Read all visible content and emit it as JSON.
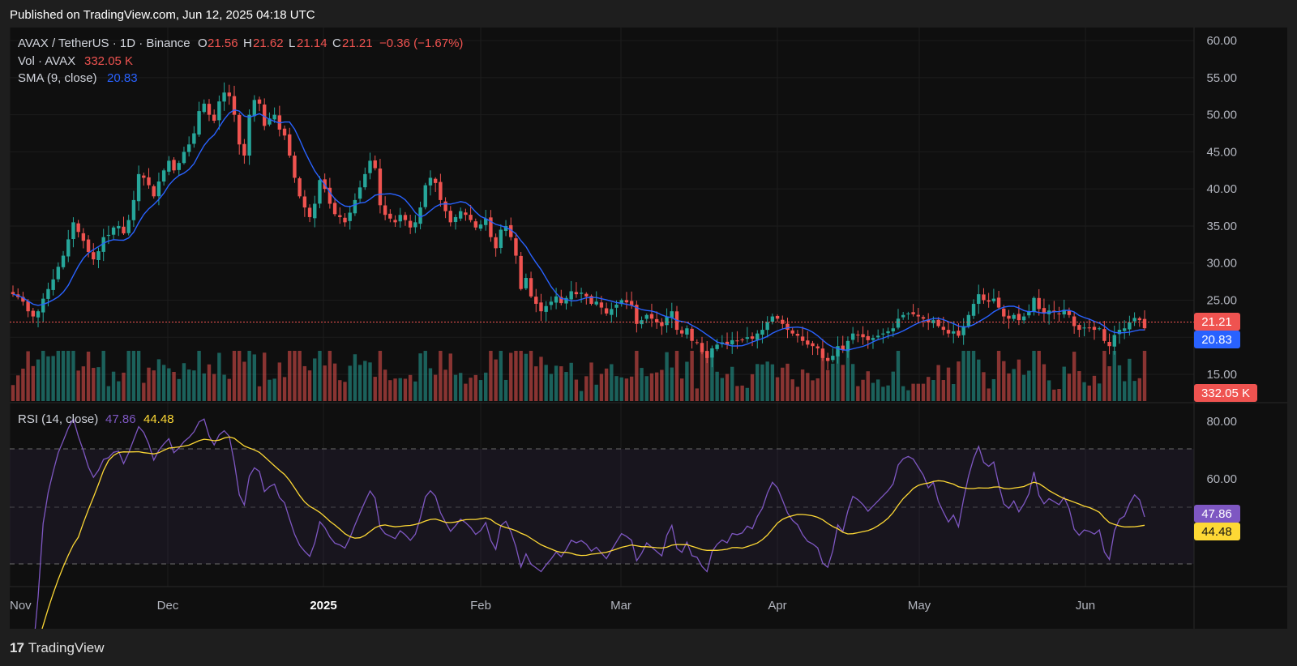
{
  "header": {
    "published": "Published on TradingView.com, Jun 12, 2025 04:18 UTC"
  },
  "footer": {
    "logo": "17",
    "brand": "TradingView"
  },
  "legend": {
    "symbol": "AVAX / TetherUS · 1D · Binance",
    "o_label": "O",
    "o_value": "21.56",
    "h_label": "H",
    "h_value": "21.62",
    "l_label": "L",
    "l_value": "21.14",
    "c_label": "C",
    "c_value": "21.21",
    "change": "−0.36 (−1.67%)",
    "vol_label": "Vol · AVAX",
    "vol_value": "332.05 K",
    "sma_label": "SMA (9, close)",
    "sma_value": "20.83",
    "rsi_label": "RSI (14, close)",
    "rsi_value": "47.86",
    "rsi_ma_value": "44.48"
  },
  "colors": {
    "up": "#26a69a",
    "down": "#ef5350",
    "sma": "#2962ff",
    "rsi": "#7e57c2",
    "rsi_ma": "#fdd835"
  },
  "chart_data": {
    "type": "candlestick",
    "title": "AVAX / TetherUS · 1D · Binance",
    "price_axis": {
      "ticks": [
        "60.00",
        "55.00",
        "50.00",
        "45.00",
        "40.00",
        "35.00",
        "30.00",
        "25.00",
        "15.00"
      ],
      "range": [
        11.5,
        61
      ]
    },
    "rsi_axis": {
      "ticks": [
        "80.00",
        "60.00"
      ],
      "range": [
        20,
        85
      ],
      "band": [
        30,
        70
      ],
      "mid": 50
    },
    "x_axis": {
      "labels": [
        "Nov",
        "Dec",
        "2025",
        "Feb",
        "Mar",
        "Apr",
        "May",
        "Jun"
      ]
    },
    "price_markers": {
      "last": "21.21",
      "sma": "20.83",
      "volume": "332.05 K",
      "rsi": "47.86",
      "rsi_ma": "44.48"
    },
    "close": [
      25.8,
      25.4,
      24.8,
      23.5,
      22.8,
      23.5,
      25.2,
      26.5,
      27.8,
      29.5,
      31.0,
      33.2,
      35.5,
      34.2,
      33.0,
      31.5,
      30.5,
      31.6,
      33.5,
      33.8,
      34.8,
      35.0,
      34.0,
      35.8,
      38.5,
      42.0,
      41.5,
      40.5,
      39.0,
      41.0,
      42.5,
      43.8,
      42.5,
      43.5,
      45.0,
      46.0,
      47.5,
      50.5,
      51.5,
      50.0,
      49.2,
      51.8,
      53.0,
      52.5,
      50.0,
      46.0,
      44.5,
      50.0,
      52.0,
      51.5,
      48.5,
      49.5,
      50.0,
      48.0,
      47.2,
      44.5,
      41.5,
      39.0,
      37.5,
      36.2,
      38.0,
      41.2,
      40.0,
      38.0,
      36.6,
      36.2,
      35.5,
      36.8,
      38.5,
      40.2,
      42.0,
      43.8,
      42.8,
      37.8,
      36.5,
      36.0,
      35.5,
      36.5,
      35.8,
      34.8,
      35.5,
      37.5,
      40.5,
      41.5,
      40.8,
      38.5,
      37.0,
      35.5,
      36.2,
      37.0,
      36.5,
      35.8,
      34.8,
      35.2,
      36.0,
      33.5,
      32.0,
      34.5,
      35.0,
      33.5,
      31.0,
      26.5,
      28.0,
      25.5,
      24.5,
      23.5,
      24.2,
      24.8,
      25.5,
      24.6,
      25.3,
      26.2,
      25.8,
      26.0,
      25.5,
      24.5,
      24.8,
      24.0,
      23.2,
      23.8,
      24.4,
      25.0,
      24.7,
      24.3,
      21.8,
      22.3,
      23.0,
      22.5,
      22.0,
      21.5,
      22.8,
      23.5,
      21.0,
      20.5,
      21.2,
      19.5,
      19.3,
      18.0,
      17.2,
      18.5,
      19.0,
      19.3,
      19.0,
      19.6,
      19.5,
      19.6,
      20.0,
      19.8,
      20.5,
      21.0,
      22.0,
      22.8,
      22.5,
      21.8,
      21.0,
      20.5,
      20.2,
      19.5,
      19.0,
      18.8,
      18.5,
      17.2,
      16.8,
      17.5,
      18.8,
      18.3,
      19.5,
      20.5,
      20.3,
      20.0,
      19.6,
      19.9,
      20.2,
      20.5,
      20.8,
      21.2,
      22.5,
      23.0,
      23.2,
      23.1,
      22.8,
      22.5,
      22.0,
      22.3,
      21.5,
      21.0,
      20.5,
      20.8,
      20.2,
      21.5,
      23.0,
      24.5,
      25.8,
      25.0,
      24.8,
      25.2,
      24.0,
      22.8,
      22.5,
      23.0,
      22.3,
      22.8,
      23.5,
      25.3,
      23.8,
      23.2,
      23.6,
      23.4,
      23.2,
      23.7,
      23.0,
      21.5,
      21.0,
      21.3,
      21.2,
      21.0,
      21.2,
      19.5,
      18.8,
      20.3,
      21.0,
      21.2,
      22.0,
      22.6,
      22.3,
      21.21
    ],
    "volume_note": "volume bars per session, relative"
  }
}
